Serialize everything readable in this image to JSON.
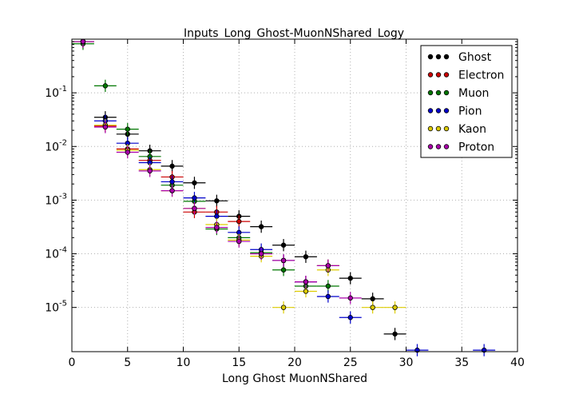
{
  "chart_data": {
    "type": "scatter",
    "title": "Inputs_Long_Ghost-MuonNShared_Logy",
    "xlabel": "Long Ghost MuonNShared",
    "ylabel": "",
    "xlim": [
      0,
      40
    ],
    "ylim": [
      1.5e-06,
      1
    ],
    "yscale": "log",
    "grid": true,
    "legend": "top-right",
    "x_ticks": [
      0,
      5,
      10,
      15,
      20,
      25,
      30,
      35,
      40
    ],
    "x_tick_labels": [
      "0",
      "5",
      "10",
      "15",
      "20",
      "25",
      "30",
      "35",
      "40"
    ],
    "y_ticks": [
      1e-05,
      0.0001,
      0.001,
      0.01,
      0.1
    ],
    "y_tick_labels": [
      {
        "base": "10",
        "exp": "-5"
      },
      {
        "base": "10",
        "exp": "-4"
      },
      {
        "base": "10",
        "exp": "-3"
      },
      {
        "base": "10",
        "exp": "-2"
      },
      {
        "base": "10",
        "exp": "-1"
      }
    ],
    "series": [
      {
        "name": "Ghost",
        "color": "#000000",
        "x": [
          1,
          3,
          5,
          7,
          9,
          11,
          13,
          15,
          17,
          19,
          21,
          23,
          25,
          27,
          29
        ],
        "y": [
          0.9,
          0.035,
          0.017,
          0.0083,
          0.0043,
          0.0021,
          0.00097,
          0.0005,
          0.00032,
          0.000145,
          8.8e-05,
          6e-05,
          3.5e-05,
          1.45e-05,
          3.2e-06
        ]
      },
      {
        "name": "Electron",
        "color": "#cc0000",
        "x": [
          1,
          3,
          5,
          7,
          9,
          11,
          13,
          15,
          17,
          19,
          21,
          23
        ],
        "y": [
          0.9,
          0.024,
          0.009,
          0.0055,
          0.0027,
          0.0006,
          0.0006,
          0.0004,
          0.0001,
          7.5e-05,
          3e-05,
          6e-05
        ]
      },
      {
        "name": "Muon",
        "color": "#007700",
        "x": [
          1,
          3,
          5,
          7,
          9,
          11,
          13,
          15,
          17,
          19,
          21,
          23
        ],
        "y": [
          0.82,
          0.135,
          0.021,
          0.0065,
          0.0019,
          0.00095,
          0.00029,
          0.0002,
          0.000105,
          5e-05,
          2.5e-05,
          2.5e-05
        ]
      },
      {
        "name": "Pion",
        "color": "#0000cc",
        "x": [
          1,
          3,
          5,
          7,
          9,
          11,
          13,
          15,
          17,
          19,
          21,
          23,
          25,
          31,
          37
        ],
        "y": [
          0.9,
          0.03,
          0.0115,
          0.005,
          0.0022,
          0.0011,
          0.0005,
          0.00025,
          0.00012,
          7.5e-05,
          3e-05,
          1.6e-05,
          6.5e-06,
          1.6e-06,
          1.6e-06
        ]
      },
      {
        "name": "Kaon",
        "color": "#ddcc00",
        "x": [
          1,
          3,
          5,
          7,
          9,
          11,
          13,
          15,
          17,
          19,
          21,
          23,
          27,
          29
        ],
        "y": [
          0.9,
          0.025,
          0.0085,
          0.0037,
          0.0015,
          0.0007,
          0.00035,
          0.00018,
          9e-05,
          1e-05,
          2e-05,
          5e-05,
          1e-05,
          1e-05
        ]
      },
      {
        "name": "Proton",
        "color": "#aa00aa",
        "x": [
          1,
          3,
          5,
          7,
          9,
          11,
          13,
          15,
          17,
          19,
          21,
          23,
          25
        ],
        "y": [
          0.9,
          0.023,
          0.0078,
          0.0035,
          0.0015,
          0.0007,
          0.00031,
          0.00017,
          0.0001,
          7.5e-05,
          3e-05,
          6e-05,
          1.5e-05
        ]
      }
    ]
  }
}
